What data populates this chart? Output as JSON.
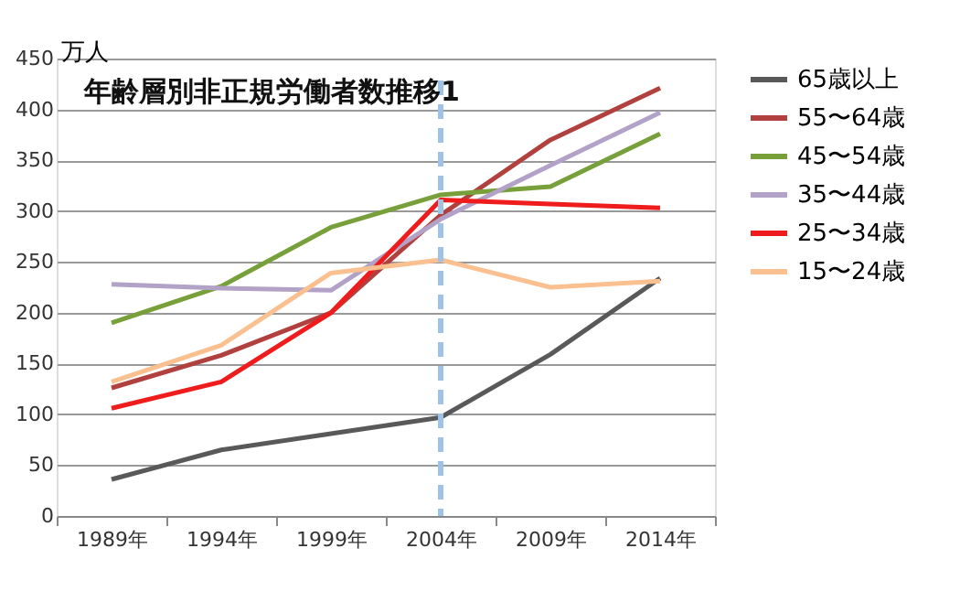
{
  "chart_data": {
    "type": "line",
    "title": "年齢層別非正規労働者数推移1",
    "ylabel": "万人",
    "categories": [
      "1989年",
      "1994年",
      "1999年",
      "2004年",
      "2009年",
      "2014年"
    ],
    "series": [
      {
        "name": "65歳以上",
        "color": "#595959",
        "values": [
          36,
          65,
          81,
          97,
          159,
          234
        ]
      },
      {
        "name": "55〜64歳",
        "color": "#b0413e",
        "values": [
          126,
          158,
          200,
          296,
          370,
          421
        ]
      },
      {
        "name": "45〜54歳",
        "color": "#77a03a",
        "values": [
          190,
          226,
          284,
          316,
          324,
          376
        ]
      },
      {
        "name": "35〜44歳",
        "color": "#b3a2c7",
        "values": [
          228,
          224,
          222,
          292,
          345,
          397
        ]
      },
      {
        "name": "25〜34歳",
        "color": "#ee1c1c",
        "values": [
          106,
          132,
          200,
          311,
          307,
          303
        ]
      },
      {
        "name": "15〜24歳",
        "color": "#fac090",
        "values": [
          132,
          168,
          239,
          252,
          225,
          231
        ]
      }
    ],
    "ylim": [
      0,
      450
    ],
    "yticks": [
      0,
      50,
      100,
      150,
      200,
      250,
      300,
      350,
      400,
      450
    ],
    "ref_lines": [
      {
        "axis": "x",
        "value": "2004年",
        "color": "#9dc3e6",
        "line_style": "dashed"
      }
    ],
    "grid": "y",
    "legend": "right",
    "marker": "none",
    "line_style": "solid"
  }
}
